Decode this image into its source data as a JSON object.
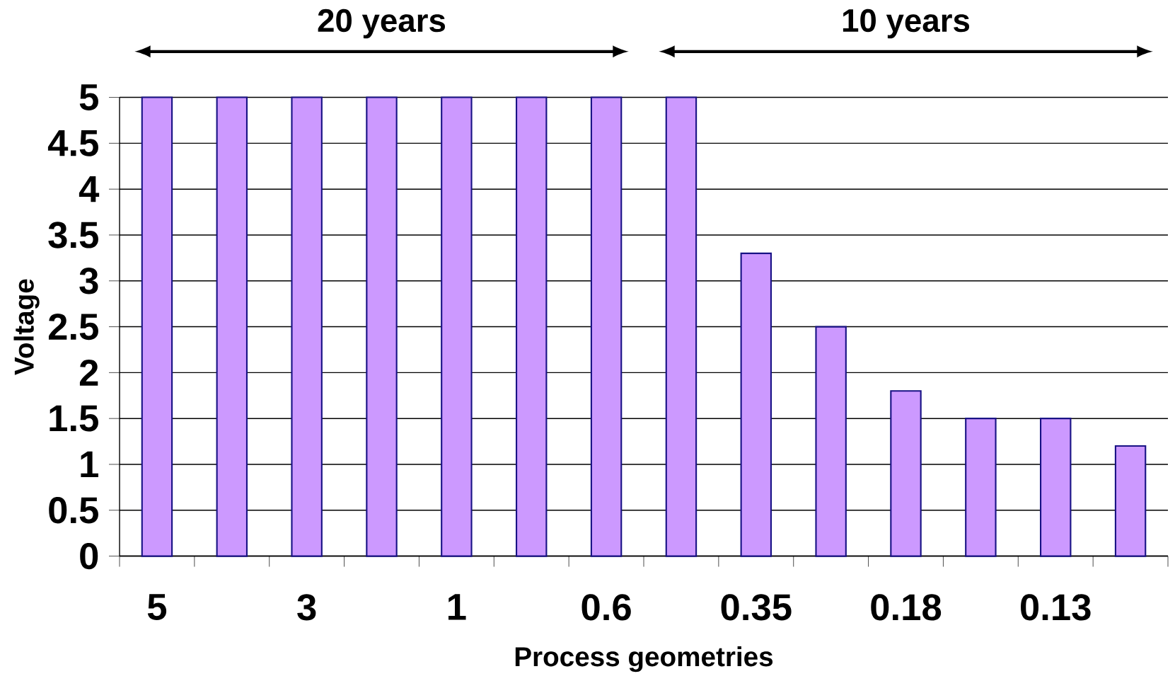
{
  "chart_data": {
    "type": "bar",
    "xlabel": "Process geometries",
    "ylabel": "Voltage",
    "categories": [
      "5",
      null,
      "3",
      null,
      "1",
      null,
      "0.6",
      null,
      "0.35",
      null,
      "0.18",
      null,
      "0.13",
      null
    ],
    "values": [
      5,
      5,
      5,
      5,
      5,
      5,
      5,
      5,
      3.3,
      2.5,
      1.8,
      1.5,
      1.5,
      1.2
    ],
    "color": "#cc99ff",
    "ylim": [
      0,
      5
    ],
    "yticks": [
      0,
      0.5,
      1,
      1.5,
      2,
      2.5,
      3,
      3.5,
      4,
      4.5,
      5
    ],
    "grid": "y",
    "annotations": [
      "20 years",
      "10 years"
    ]
  }
}
